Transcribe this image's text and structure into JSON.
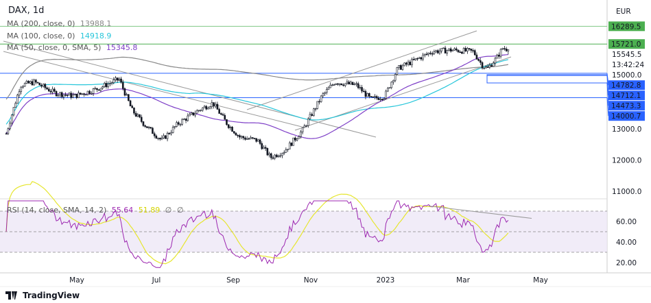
{
  "header": {
    "symbol_title": "DAX, 1d",
    "currency": "EUR"
  },
  "legends": {
    "ma200": {
      "label": "MA (200, close, 0)",
      "value": "13988.1",
      "color": "#888888"
    },
    "ma100": {
      "label": "MA (100, close, 0)",
      "value": "14918.9",
      "color": "#26c6da"
    },
    "ma50": {
      "label": "MA (50, close, 0, SMA, 5)",
      "value": "15345.8",
      "color": "#7e3fc7"
    },
    "rsi": {
      "label": "RSI (14, close, SMA, 14, 2)",
      "value": "55.64",
      "sma_value": "51.89",
      "extra1": "∅",
      "extra2": "∅",
      "rsi_color": "#9c27b0",
      "sma_color": "#e6e62e"
    }
  },
  "price_axis": {
    "ticks": [
      "15000.0",
      "13000.0",
      "12000.0",
      "11000.0"
    ],
    "last_price": "15545.5",
    "countdown": "13:42:24",
    "level_tags": [
      {
        "value": "16289.5",
        "color": "#4caf50"
      },
      {
        "value": "15721.0",
        "color": "#4caf50"
      },
      {
        "value": "14782.8",
        "color": "#2962ff"
      },
      {
        "value": "14712.1",
        "color": "#2962ff"
      },
      {
        "value": "14473.3",
        "color": "#2962ff"
      },
      {
        "value": "14000.7",
        "color": "#2962ff"
      }
    ]
  },
  "rsi_axis": {
    "ticks": [
      "60.00",
      "40.00",
      "20.00"
    ]
  },
  "time_axis": {
    "ticks": [
      "May",
      "Jul",
      "Sep",
      "Nov",
      "2023",
      "Mar",
      "May"
    ]
  },
  "branding": {
    "logo_text": "TradingView"
  },
  "chart_data": {
    "type": "candlestick",
    "title": "DAX, 1d",
    "ylim": [
      10700,
      16700
    ],
    "approx_closes": [
      [
        "2022-03-07",
        12850
      ],
      [
        "2022-03-18",
        14400
      ],
      [
        "2022-03-29",
        14500
      ],
      [
        "2022-04-14",
        14150
      ],
      [
        "2022-04-29",
        14050
      ],
      [
        "2022-05-16",
        14270
      ],
      [
        "2022-06-03",
        14600
      ],
      [
        "2022-06-13",
        13600
      ],
      [
        "2022-06-22",
        13170
      ],
      [
        "2022-07-06",
        12630
      ],
      [
        "2022-07-19",
        13170
      ],
      [
        "2022-08-04",
        13600
      ],
      [
        "2022-08-15",
        13830
      ],
      [
        "2022-08-26",
        13170
      ],
      [
        "2022-09-05",
        12740
      ],
      [
        "2022-09-19",
        12630
      ],
      [
        "2022-09-29",
        12080
      ],
      [
        "2022-10-10",
        12300
      ],
      [
        "2022-10-24",
        12960
      ],
      [
        "2022-11-08",
        14050
      ],
      [
        "2022-11-18",
        14500
      ],
      [
        "2022-12-05",
        14400
      ],
      [
        "2022-12-16",
        13950
      ],
      [
        "2022-12-27",
        14050
      ],
      [
        "2023-01-06",
        14930
      ],
      [
        "2023-01-17",
        15150
      ],
      [
        "2023-02-02",
        15480
      ],
      [
        "2023-02-17",
        15530
      ],
      [
        "2023-03-06",
        15480
      ],
      [
        "2023-03-13",
        15040
      ],
      [
        "2023-03-17",
        14930
      ],
      [
        "2023-03-24",
        15260
      ],
      [
        "2023-03-29",
        15590
      ],
      [
        "2023-04-03",
        15545.5
      ]
    ],
    "horizontal_levels": [
      16289.5,
      15721.0,
      14782.8,
      14712.1,
      14473.3,
      14000.7
    ],
    "rsi_levels": [
      70,
      50,
      30
    ],
    "rsi_ylim": [
      12,
      82
    ]
  }
}
